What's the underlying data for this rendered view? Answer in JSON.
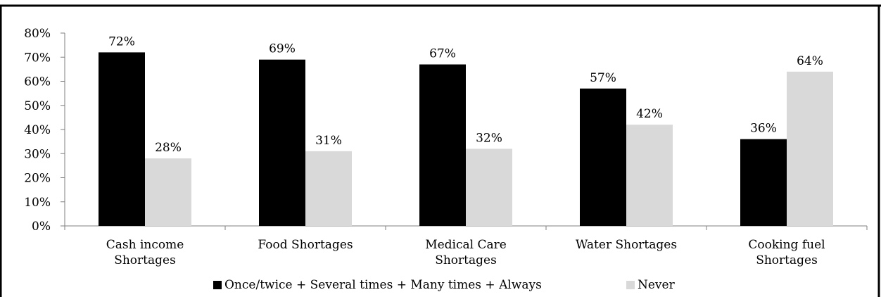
{
  "chart_data": {
    "type": "bar",
    "categories": [
      [
        "Cash income",
        "Shortages"
      ],
      [
        "Food Shortages"
      ],
      [
        "Medical Care",
        "Shortages"
      ],
      [
        "Water Shortages"
      ],
      [
        "Cooking fuel",
        "Shortages"
      ]
    ],
    "series": [
      {
        "name": "Once/twice + Several times + Many times + Always",
        "color": "#000000",
        "values": [
          72,
          69,
          67,
          57,
          36
        ],
        "labels": [
          "72%",
          "69%",
          "67%",
          "57%",
          "36%"
        ]
      },
      {
        "name": "Never",
        "color": "#d9d9d9",
        "values": [
          28,
          31,
          32,
          42,
          64
        ],
        "labels": [
          "28%",
          "31%",
          "32%",
          "42%",
          "64%"
        ]
      }
    ],
    "yticks": [
      "0%",
      "10%",
      "20%",
      "30%",
      "40%",
      "50%",
      "60%",
      "70%",
      "80%"
    ],
    "ylim": [
      0,
      80
    ],
    "grid": false,
    "legend_position": "bottom"
  }
}
